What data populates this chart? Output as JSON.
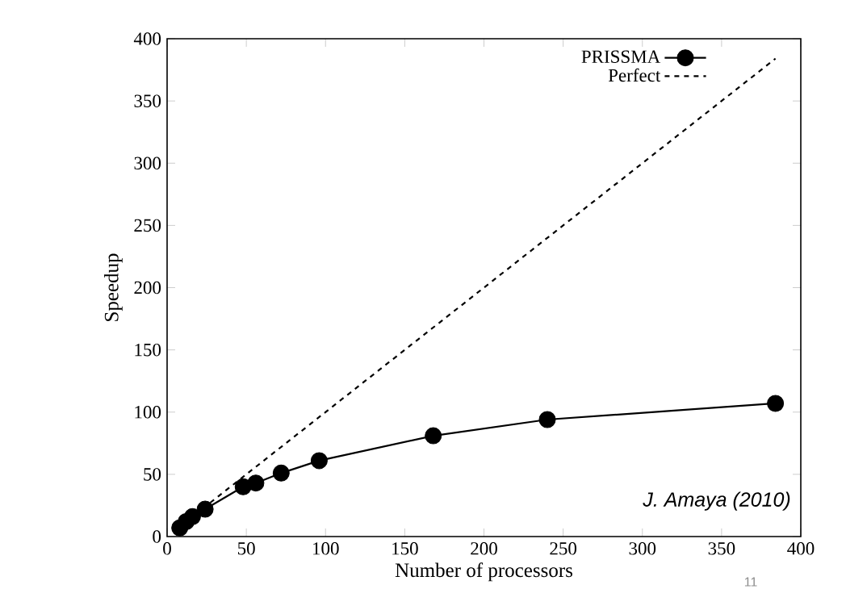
{
  "chart_data": {
    "type": "line",
    "xlabel": "Number of processors",
    "ylabel": "Speedup",
    "xlim": [
      0,
      400
    ],
    "ylim": [
      0,
      400
    ],
    "xticks": [
      0,
      50,
      100,
      150,
      200,
      250,
      300,
      350,
      400
    ],
    "yticks": [
      0,
      50,
      100,
      150,
      200,
      250,
      300,
      350,
      400
    ],
    "series": [
      {
        "name": "PRISSMA",
        "color": "#000000",
        "marker": "circle",
        "line_style": "solid",
        "x": [
          8,
          12,
          16,
          24,
          48,
          56,
          72,
          96,
          168,
          240,
          384
        ],
        "values": [
          7,
          12,
          16,
          22,
          40,
          43,
          51,
          61,
          81,
          94,
          107
        ]
      },
      {
        "name": "Perfect",
        "color": "#000000",
        "marker": "none",
        "line_style": "dashed",
        "x": [
          8,
          384
        ],
        "values": [
          8,
          384
        ]
      }
    ],
    "legend": "top right",
    "grid": false,
    "annotations": [
      "J. Amaya (2010)",
      "11"
    ]
  }
}
